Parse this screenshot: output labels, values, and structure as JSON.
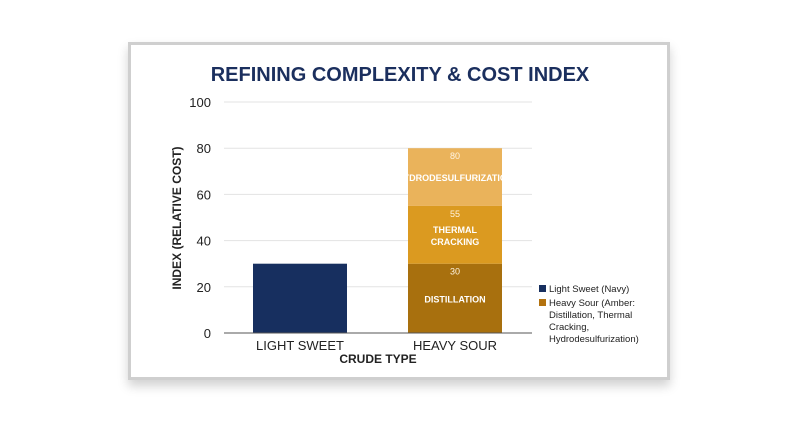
{
  "chart_data": {
    "type": "bar",
    "stacked": true,
    "title": "REFINING COMPLEXITY & COST INDEX",
    "xlabel": "CRUDE TYPE",
    "ylabel": "INDEX (RELATIVE COST)",
    "ylim": [
      0,
      100
    ],
    "yticks": [
      0,
      20,
      40,
      60,
      80,
      100
    ],
    "grid": true,
    "legend_position": "right",
    "categories": [
      "LIGHT SWEET",
      "HEAVY SOUR"
    ],
    "bars": [
      {
        "category": "LIGHT SWEET",
        "segments": [
          {
            "label": "",
            "from": 0,
            "to": 30,
            "color": "#172f5f"
          }
        ]
      },
      {
        "category": "HEAVY SOUR",
        "segments": [
          {
            "label": "DISTILLATION",
            "from": 0,
            "to": 30,
            "color": "#a8700e",
            "value_label": "30"
          },
          {
            "label": "THERMAL CRACKING",
            "from": 30,
            "to": 55,
            "color": "#db9a20",
            "value_label": "55"
          },
          {
            "label": "HYDRODESULFURIZATION",
            "from": 55,
            "to": 80,
            "color": "#eab35b",
            "value_label": "80"
          }
        ]
      }
    ],
    "legend": [
      {
        "label": "Light Sweet (Navy)",
        "color": "#172f5f"
      },
      {
        "label": "Heavy Sour (Amber: Distillation, Thermal Cracking, Hydrodesulfurization)",
        "color": "#b3720f"
      }
    ],
    "colors": {
      "title": "#1b2f5e",
      "grid": "#e3e3e3",
      "axis": "#555555",
      "text": "#222222"
    }
  }
}
